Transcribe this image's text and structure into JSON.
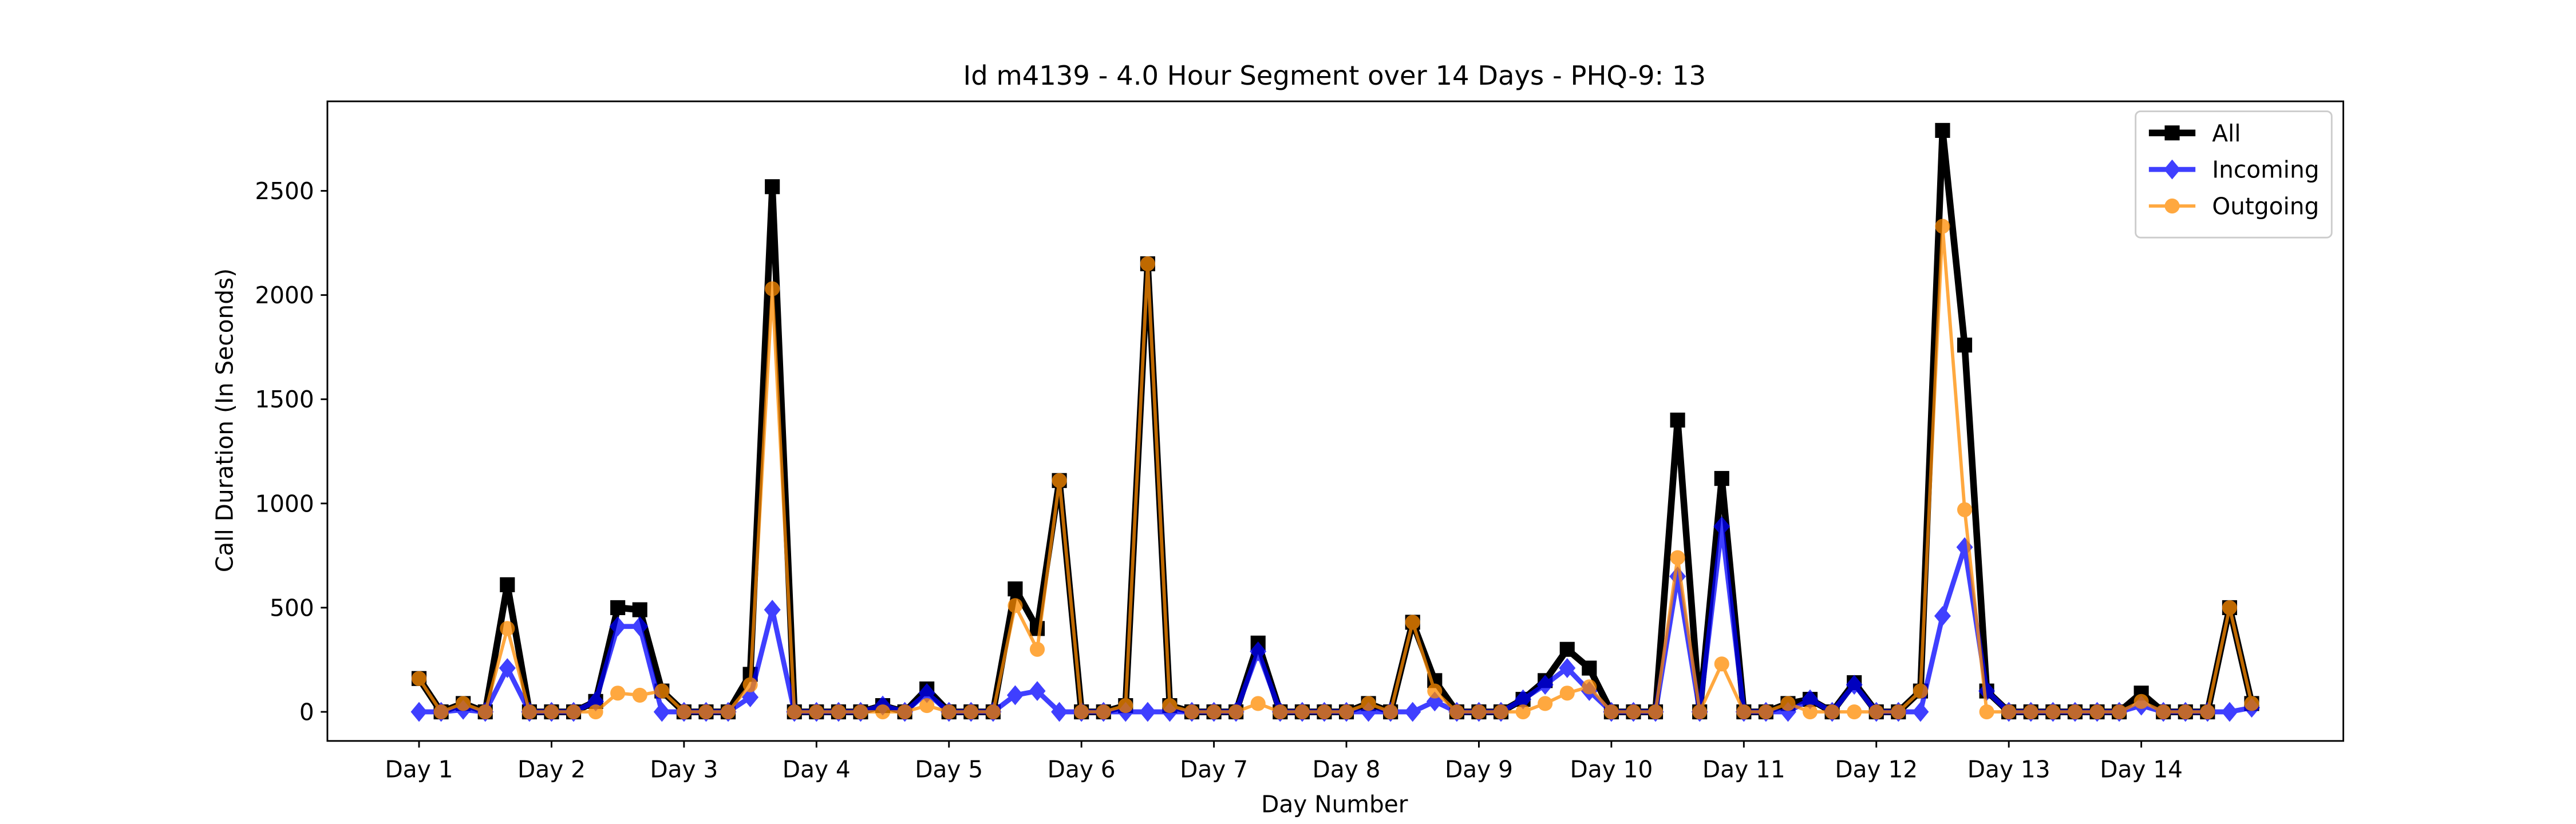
{
  "chart_data": {
    "type": "line",
    "title": "Id m4139 - 4.0 Hour Segment over 14 Days - PHQ-9: 13",
    "x_label": "Day Number",
    "y_label": "Call Duration (In Seconds)",
    "x": [
      0,
      1,
      2,
      3,
      4,
      5,
      6,
      7,
      8,
      9,
      10,
      11,
      12,
      13,
      14,
      15,
      16,
      17,
      18,
      19,
      20,
      21,
      22,
      23,
      24,
      25,
      26,
      27,
      28,
      29,
      30,
      31,
      32,
      33,
      34,
      35,
      36,
      37,
      38,
      39,
      40,
      41,
      42,
      43,
      44,
      45,
      46,
      47,
      48,
      49,
      50,
      51,
      52,
      53,
      54,
      55,
      56,
      57,
      58,
      59,
      60,
      61,
      62,
      63,
      64,
      65,
      66,
      67,
      68,
      69,
      70,
      71,
      72,
      73,
      74,
      75,
      76,
      77,
      78,
      79,
      80,
      81,
      82,
      83
    ],
    "series": [
      {
        "name": "All",
        "color": "#000000",
        "marker": "square",
        "values": [
          160,
          0,
          40,
          0,
          610,
          0,
          0,
          0,
          50,
          500,
          490,
          100,
          0,
          0,
          0,
          180,
          2520,
          0,
          0,
          0,
          0,
          30,
          0,
          110,
          0,
          0,
          0,
          590,
          400,
          1110,
          0,
          0,
          30,
          2150,
          30,
          0,
          0,
          0,
          330,
          0,
          0,
          0,
          0,
          40,
          0,
          430,
          150,
          0,
          0,
          0,
          60,
          150,
          300,
          210,
          0,
          0,
          0,
          1400,
          0,
          1120,
          0,
          0,
          40,
          60,
          0,
          140,
          0,
          0,
          100,
          2790,
          1760,
          100,
          0,
          0,
          0,
          0,
          0,
          0,
          90,
          0,
          0,
          0,
          500,
          40
        ]
      },
      {
        "name": "Incoming",
        "color": "#0000ff",
        "marker": "diamond",
        "values": [
          0,
          0,
          10,
          0,
          210,
          0,
          0,
          0,
          50,
          410,
          410,
          0,
          0,
          0,
          0,
          70,
          490,
          0,
          0,
          0,
          0,
          30,
          0,
          90,
          0,
          0,
          0,
          80,
          100,
          0,
          0,
          0,
          0,
          0,
          0,
          0,
          0,
          0,
          290,
          0,
          0,
          0,
          0,
          0,
          0,
          0,
          50,
          0,
          0,
          0,
          60,
          130,
          210,
          100,
          0,
          0,
          0,
          650,
          0,
          890,
          0,
          0,
          0,
          60,
          0,
          130,
          0,
          0,
          0,
          460,
          790,
          100,
          0,
          0,
          0,
          0,
          0,
          0,
          30,
          0,
          0,
          0,
          0,
          20
        ]
      },
      {
        "name": "Outgoing",
        "color": "#ff8c00",
        "marker": "circle",
        "values": [
          160,
          0,
          40,
          0,
          400,
          0,
          0,
          0,
          0,
          90,
          80,
          100,
          0,
          0,
          0,
          130,
          2030,
          0,
          0,
          0,
          0,
          0,
          0,
          30,
          0,
          0,
          0,
          510,
          300,
          1110,
          0,
          0,
          30,
          2150,
          30,
          0,
          0,
          0,
          40,
          0,
          0,
          0,
          0,
          40,
          0,
          430,
          100,
          0,
          0,
          0,
          0,
          40,
          90,
          120,
          0,
          0,
          0,
          740,
          0,
          230,
          0,
          0,
          40,
          0,
          0,
          0,
          0,
          0,
          100,
          2330,
          970,
          0,
          0,
          0,
          0,
          0,
          0,
          0,
          50,
          0,
          0,
          0,
          500,
          40
        ]
      }
    ],
    "xlim": [
      -4.15,
      87.15
    ],
    "xticks": [
      {
        "value": 0,
        "label": "Day 1"
      },
      {
        "value": 6,
        "label": "Day 2"
      },
      {
        "value": 12,
        "label": "Day 3"
      },
      {
        "value": 18,
        "label": "Day 4"
      },
      {
        "value": 24,
        "label": "Day 5"
      },
      {
        "value": 30,
        "label": "Day 6"
      },
      {
        "value": 36,
        "label": "Day 7"
      },
      {
        "value": 42,
        "label": "Day 8"
      },
      {
        "value": 48,
        "label": "Day 9"
      },
      {
        "value": 54,
        "label": "Day 10"
      },
      {
        "value": 60,
        "label": "Day 11"
      },
      {
        "value": 66,
        "label": "Day 12"
      },
      {
        "value": 72,
        "label": "Day 13"
      },
      {
        "value": 78,
        "label": "Day 14"
      }
    ],
    "ylim": [
      -139.5,
      2929.5
    ],
    "yticks": [
      0,
      500,
      1000,
      1500,
      2000,
      2500
    ],
    "legend": "upper right"
  }
}
